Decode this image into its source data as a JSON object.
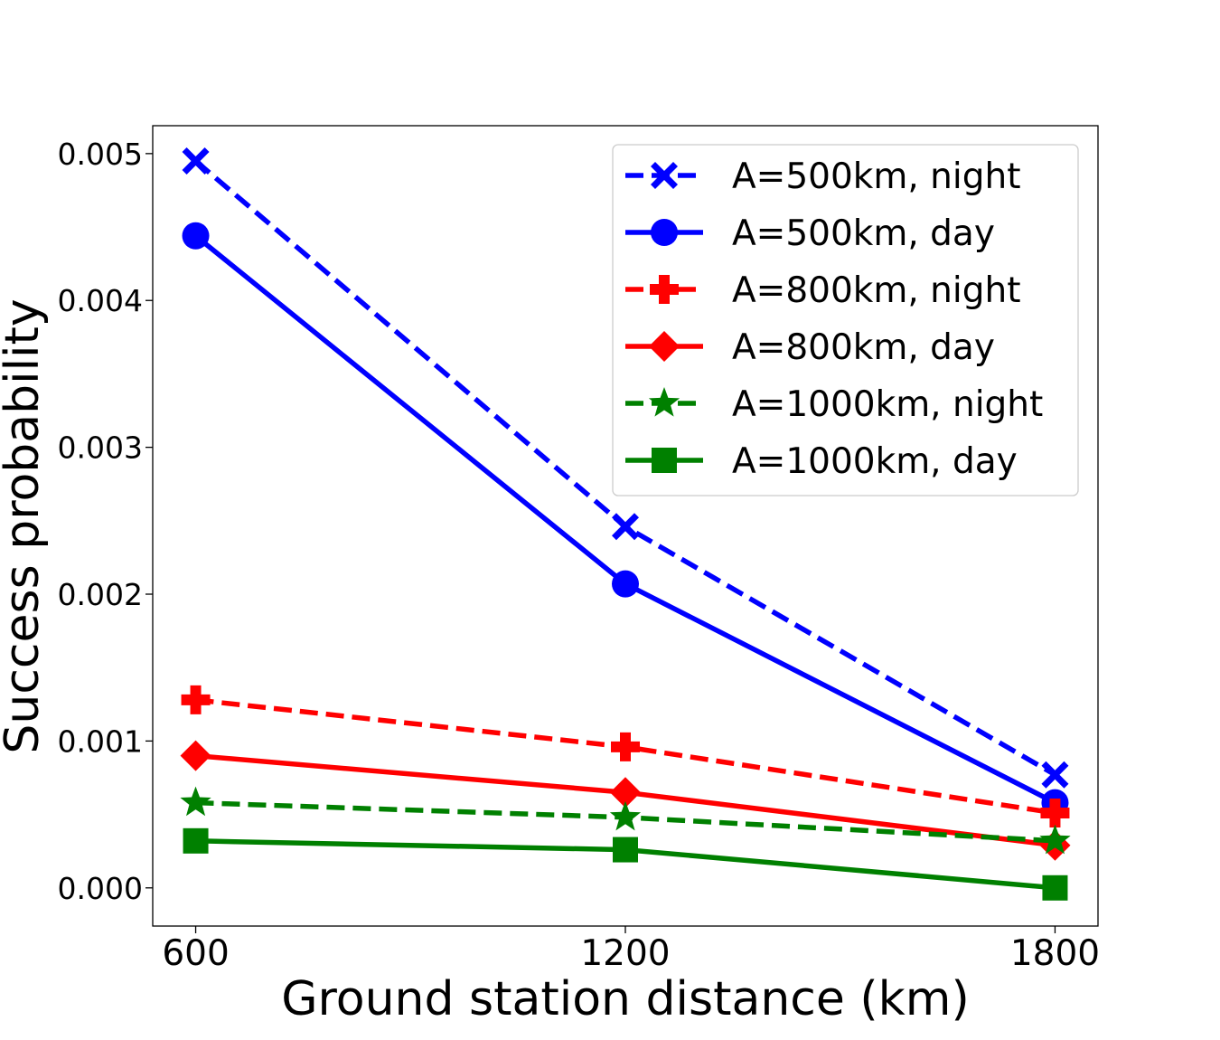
{
  "chart_data": {
    "type": "line",
    "title": "",
    "xlabel": "Ground station distance (km)",
    "ylabel": "Success probability",
    "x": [
      600,
      1200,
      1800
    ],
    "x_tick_labels": [
      "600",
      "1200",
      "1800"
    ],
    "y_tick_labels": [
      "0.000",
      "0.001",
      "0.002",
      "0.003",
      "0.004",
      "0.005"
    ],
    "y_ticks": [
      0,
      0.001,
      0.002,
      0.003,
      0.004,
      0.005
    ],
    "xlim": [
      540,
      1860
    ],
    "ylim": [
      -0.00026,
      0.00519
    ],
    "grid": false,
    "legend_position": "top-right",
    "series": [
      {
        "name": "A=500km, night",
        "values": [
          0.00495,
          0.00246,
          0.00077
        ],
        "color": "#0000ff",
        "dash": true,
        "marker": "x"
      },
      {
        "name": "A=500km, day",
        "values": [
          0.00444,
          0.00207,
          0.00058
        ],
        "color": "#0000ff",
        "dash": false,
        "marker": "circle"
      },
      {
        "name": "A=800km, night",
        "values": [
          0.00128,
          0.00096,
          0.00051
        ],
        "color": "#ff0000",
        "dash": true,
        "marker": "plus"
      },
      {
        "name": "A=800km, day",
        "values": [
          0.0009,
          0.00065,
          0.00029
        ],
        "color": "#ff0000",
        "dash": false,
        "marker": "diamond"
      },
      {
        "name": "A=1000km, night",
        "values": [
          0.00058,
          0.00048,
          0.00032
        ],
        "color": "#008000",
        "dash": true,
        "marker": "star"
      },
      {
        "name": "A=1000km, day",
        "values": [
          0.00032,
          0.00026,
          0.0
        ],
        "color": "#008000",
        "dash": false,
        "marker": "square"
      }
    ]
  }
}
